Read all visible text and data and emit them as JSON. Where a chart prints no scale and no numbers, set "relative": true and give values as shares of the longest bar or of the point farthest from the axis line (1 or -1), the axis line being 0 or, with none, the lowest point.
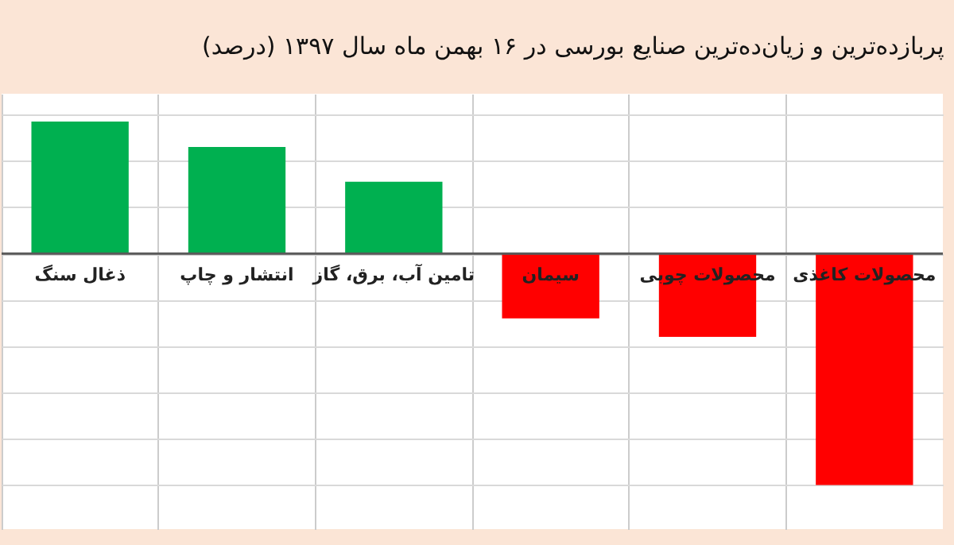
{
  "chart_data": {
    "type": "bar",
    "title": "پربازده‌ترین و زیان‌ده‌ترین صنایع بورسی در ۱۶ بهمن ماه سال ۱۳۹۷ (درصد)",
    "categories": [
      "ذغال سنگ",
      "انتشار و چاپ",
      "تامین آب، برق، گاز",
      "سیمان",
      "محصولات چوبی",
      "محصولات کاغذی"
    ],
    "values": [
      0.57,
      0.46,
      0.31,
      -0.28,
      -0.36,
      -1
    ],
    "colors": [
      "#00b050",
      "#00b050",
      "#00b050",
      "#ff0000",
      "#ff0000",
      "#ff0000"
    ],
    "relative": true,
    "grid": true
  }
}
